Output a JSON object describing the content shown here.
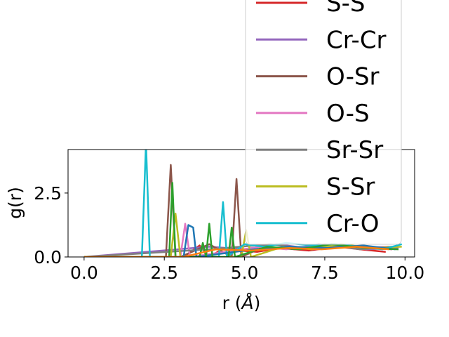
{
  "chart_data": {
    "type": "line",
    "xlabel_prefix": "r (",
    "xlabel_unit": "Å",
    "xlabel_suffix": ")",
    "ylabel": "g(r)",
    "xlim": [
      -0.5,
      10.3
    ],
    "ylim": [
      0,
      4.2
    ],
    "xticks": [
      0.0,
      2.5,
      5.0,
      7.5,
      10.0
    ],
    "xtick_labels": [
      "0.0",
      "2.5",
      "5.0",
      "7.5",
      "10.0"
    ],
    "yticks": [
      0.0,
      2.5
    ],
    "ytick_labels": [
      "0.0",
      "2.5"
    ],
    "legend_location": "upper right",
    "grid": false,
    "series": [
      {
        "name": "S-S",
        "color": "#d62728",
        "in_legend": true,
        "x": [
          0,
          2.7,
          3.1,
          3.6,
          3.9,
          4.3,
          5.4,
          6.1,
          7.0,
          7.9,
          8.6,
          9.4
        ],
        "y": [
          0,
          0,
          0,
          0.45,
          0,
          0.3,
          0.2,
          0.35,
          0.25,
          0.4,
          0.3,
          0.2
        ]
      },
      {
        "name": "Cr-Cr",
        "color": "#9467bd",
        "in_legend": true,
        "x": [
          0,
          3.9,
          5.0,
          6.0,
          6.9,
          7.9,
          8.8,
          9.8
        ],
        "y": [
          0,
          0.4,
          0.3,
          0.5,
          0.35,
          0.45,
          0.3,
          0.35
        ]
      },
      {
        "name": "O-Sr",
        "color": "#8c564b",
        "in_legend": true,
        "x": [
          0,
          2.4,
          2.55,
          2.7,
          2.85,
          3.0,
          3.9,
          4.6,
          4.75,
          4.9,
          5.6,
          6.6,
          7.3,
          8.1,
          8.9,
          9.6
        ],
        "y": [
          0,
          0,
          0,
          3.6,
          0,
          0,
          0.5,
          0,
          3.05,
          0,
          0.4,
          0.3,
          0.5,
          0.4,
          0.35,
          0.3
        ]
      },
      {
        "name": "O-S",
        "color": "#e377c2",
        "in_legend": true,
        "x": [
          0,
          3.0,
          3.15,
          3.3,
          5.5,
          6.3,
          7.5,
          8.5,
          9.5
        ],
        "y": [
          0,
          0,
          1.3,
          0,
          0.4,
          0.3,
          0.5,
          0.35,
          0.4
        ]
      },
      {
        "name": "Sr-Sr",
        "color": "#7f7f7f",
        "in_legend": true,
        "x": [
          0,
          3.9,
          5.8,
          6.8,
          7.7,
          8.6,
          9.6
        ],
        "y": [
          0,
          0.3,
          0.5,
          0.35,
          0.45,
          0.3,
          0.4
        ]
      },
      {
        "name": "S-Sr",
        "color": "#bcbd22",
        "in_legend": true,
        "x": [
          0,
          2.7,
          2.85,
          3.0,
          4.9,
          5.05,
          5.2,
          6.2,
          7.1,
          8.0,
          9.0,
          9.9
        ],
        "y": [
          0,
          0,
          1.7,
          0,
          0,
          1.05,
          0,
          0.4,
          0.3,
          0.5,
          0.35,
          0.4
        ]
      },
      {
        "name": "Cr-O",
        "color": "#17becf",
        "in_legend": true,
        "x": [
          0,
          1.8,
          1.93,
          2.05,
          4.2,
          4.33,
          4.45,
          5.0,
          5.6,
          6.3,
          7.1,
          7.8,
          8.6,
          9.3,
          9.9
        ],
        "y": [
          0,
          0,
          4.45,
          0,
          0,
          2.15,
          0,
          0.5,
          0.4,
          0.55,
          0.45,
          0.5,
          0.4,
          0.3,
          0.5
        ]
      },
      {
        "name": "",
        "color": "#1f77b4",
        "in_legend": false,
        "x": [
          0,
          3.1,
          3.25,
          3.4,
          3.5,
          5.3,
          6.4,
          7.6,
          8.7,
          9.7
        ],
        "y": [
          0,
          0,
          1.25,
          1.15,
          0,
          0.3,
          0.4,
          0.35,
          0.45,
          0.3
        ]
      },
      {
        "name": "",
        "color": "#2ca02c",
        "in_legend": false,
        "x": [
          0,
          2.65,
          2.75,
          2.85,
          3.6,
          3.7,
          3.8,
          3.9,
          4.0,
          4.5,
          4.6,
          4.7,
          5.7,
          6.7,
          7.7,
          8.8,
          9.8
        ],
        "y": [
          0,
          0,
          2.9,
          0,
          0,
          0.55,
          0,
          1.3,
          0,
          0,
          1.15,
          0,
          0.4,
          0.3,
          0.5,
          0.35,
          0.3
        ]
      },
      {
        "name": "",
        "color": "#ff7f0e",
        "in_legend": false,
        "x": [
          0,
          3.1,
          4.1,
          5.2,
          6.4,
          7.4,
          8.5,
          9.5
        ],
        "y": [
          0,
          0,
          0.3,
          0.25,
          0.35,
          0.3,
          0.4,
          0.3
        ]
      }
    ]
  }
}
